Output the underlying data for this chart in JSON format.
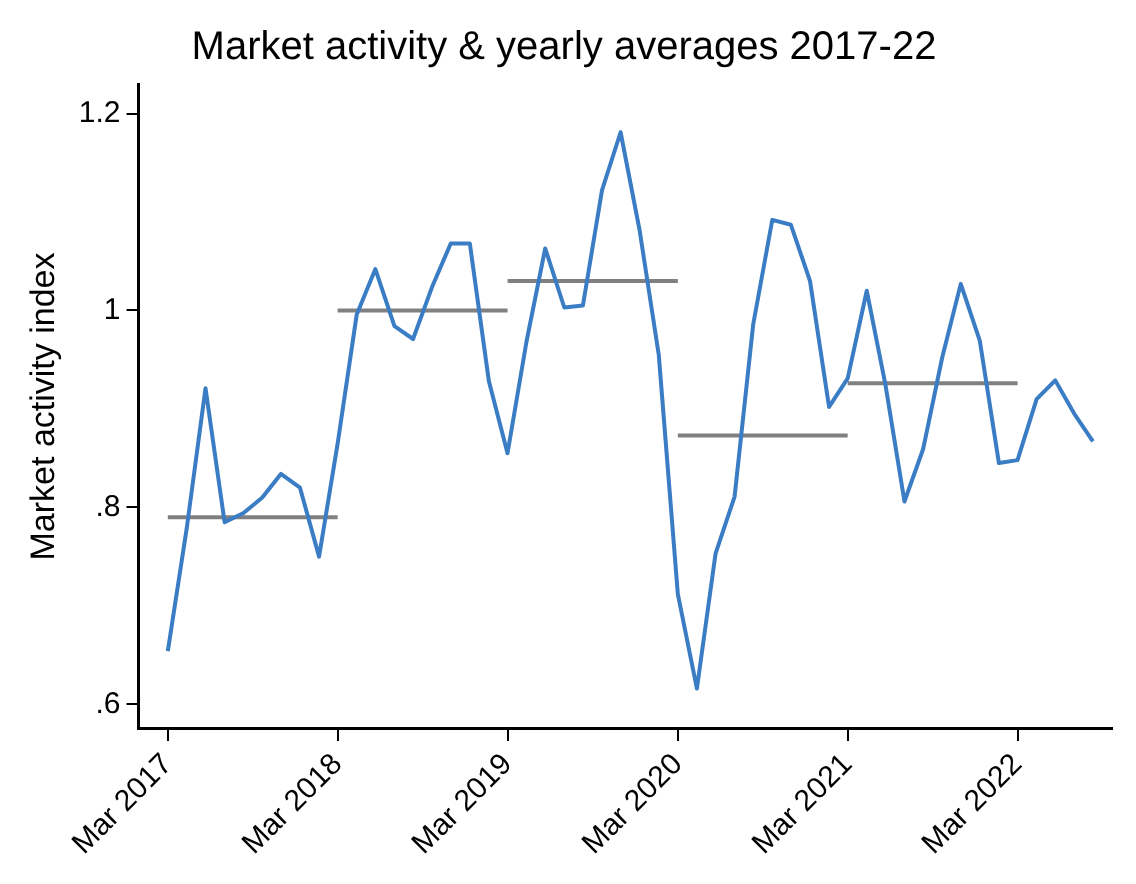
{
  "chart_data": {
    "type": "line",
    "title": "Market activity & yearly averages 2017-22",
    "ylabel": "Market activity index",
    "xlim": [
      "2016-12-28",
      "2022-09-20"
    ],
    "ylim": [
      0.575,
      1.23
    ],
    "xticks": [
      {
        "value": "2017-03-01",
        "label": "Mar 2017"
      },
      {
        "value": "2018-03-01",
        "label": "Mar 2018"
      },
      {
        "value": "2019-03-01",
        "label": "Mar 2019"
      },
      {
        "value": "2020-03-01",
        "label": "Mar 2020"
      },
      {
        "value": "2021-03-01",
        "label": "Mar 2021"
      },
      {
        "value": "2022-03-01",
        "label": "Mar 2022"
      }
    ],
    "yticks": [
      {
        "value": 0.6,
        "label": ".6"
      },
      {
        "value": 0.8,
        "label": ".8"
      },
      1,
      1.2
    ],
    "grid": false,
    "legend": false,
    "marker": "none",
    "line_style": "solid",
    "series": [
      {
        "color": "#3a7dc4",
        "x": [
          "2017-03-01",
          "2017-04-11",
          "2017-05-21",
          "2017-07-01",
          "2017-08-10",
          "2017-09-20",
          "2017-10-30",
          "2017-12-10",
          "2018-01-20",
          "2018-03-01",
          "2018-04-11",
          "2018-05-21",
          "2018-07-01",
          "2018-08-10",
          "2018-09-20",
          "2018-10-30",
          "2018-12-10",
          "2019-01-20",
          "2019-03-01",
          "2019-04-11",
          "2019-05-21",
          "2019-07-01",
          "2019-08-10",
          "2019-09-20",
          "2019-10-30",
          "2019-12-10",
          "2020-01-20",
          "2020-03-01",
          "2020-04-11",
          "2020-05-21",
          "2020-07-01",
          "2020-08-10",
          "2020-09-20",
          "2020-10-30",
          "2020-12-10",
          "2021-01-20",
          "2021-03-01",
          "2021-04-11",
          "2021-05-21",
          "2021-07-01",
          "2021-08-10",
          "2021-09-20",
          "2021-10-30",
          "2021-12-10",
          "2022-01-20",
          "2022-03-01",
          "2022-04-11",
          "2022-05-21",
          "2022-07-01",
          "2022-08-10"
        ],
        "values": [
          0.654,
          0.78,
          0.921,
          0.785,
          0.794,
          0.81,
          0.834,
          0.82,
          0.75,
          0.865,
          0.996,
          1.042,
          0.984,
          0.971,
          1.024,
          1.068,
          1.068,
          0.928,
          0.855,
          0.969,
          1.063,
          1.003,
          1.005,
          1.122,
          1.181,
          1.081,
          0.955,
          0.712,
          0.616,
          0.753,
          0.811,
          0.986,
          1.092,
          1.087,
          1.03,
          0.902,
          0.931,
          1.02,
          0.925,
          0.806,
          0.859,
          0.952,
          1.027,
          0.969,
          0.845,
          0.848,
          0.91,
          0.929,
          0.895,
          0.867
        ]
      },
      {
        "color": "#808080",
        "x": [
          "2017-03-01",
          "2018-03-01"
        ],
        "values": [
          0.79,
          0.79
        ]
      },
      {
        "color": "#808080",
        "x": [
          "2018-03-01",
          "2019-03-01"
        ],
        "values": [
          1.0,
          1.0
        ]
      },
      {
        "color": "#808080",
        "x": [
          "2019-03-01",
          "2020-03-01"
        ],
        "values": [
          1.03,
          1.03
        ]
      },
      {
        "color": "#808080",
        "x": [
          "2020-03-01",
          "2021-03-01"
        ],
        "values": [
          0.873,
          0.873
        ]
      },
      {
        "color": "#808080",
        "x": [
          "2021-03-01",
          "2022-03-01"
        ],
        "values": [
          0.926,
          0.926
        ]
      }
    ]
  }
}
